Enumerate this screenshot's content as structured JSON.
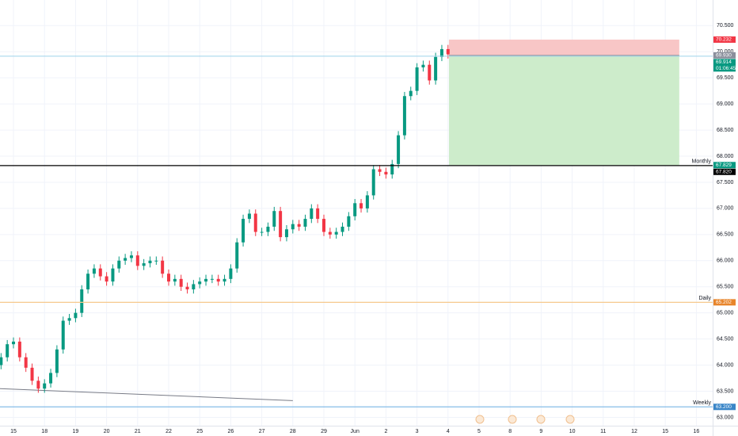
{
  "chart_data": {
    "type": "candlestick",
    "up_color": "#089981",
    "down_color": "#f23645",
    "grid": true,
    "xlim": [
      -0.434,
      22.526
    ],
    "ylim": [
      62.84,
      70.99
    ],
    "xticks": [
      {
        "value": 0,
        "label": "15"
      },
      {
        "value": 1,
        "label": "18"
      },
      {
        "value": 2,
        "label": "19"
      },
      {
        "value": 3,
        "label": "20"
      },
      {
        "value": 4,
        "label": "21"
      },
      {
        "value": 5,
        "label": "22"
      },
      {
        "value": 6,
        "label": "25"
      },
      {
        "value": 7,
        "label": "26"
      },
      {
        "value": 8,
        "label": "27"
      },
      {
        "value": 9,
        "label": "28"
      },
      {
        "value": 10,
        "label": "29"
      },
      {
        "value": 11,
        "label": "Jun"
      },
      {
        "value": 12,
        "label": "2"
      },
      {
        "value": 13,
        "label": "3"
      },
      {
        "value": 14,
        "label": "4"
      },
      {
        "value": 15,
        "label": "5"
      },
      {
        "value": 16,
        "label": "8"
      },
      {
        "value": 17,
        "label": "9"
      },
      {
        "value": 18,
        "label": "10"
      },
      {
        "value": 19,
        "label": "11"
      },
      {
        "value": 20,
        "label": "12"
      },
      {
        "value": 21,
        "label": "15"
      },
      {
        "value": 22,
        "label": "16"
      }
    ],
    "yticks": [
      {
        "value": 63.0,
        "label": "63.000"
      },
      {
        "value": 63.5,
        "label": "63.500"
      },
      {
        "value": 64.0,
        "label": "64.000"
      },
      {
        "value": 64.5,
        "label": "64.500"
      },
      {
        "value": 65.0,
        "label": "65.000"
      },
      {
        "value": 65.5,
        "label": "65.500"
      },
      {
        "value": 66.0,
        "label": "66.000"
      },
      {
        "value": 66.5,
        "label": "66.500"
      },
      {
        "value": 67.0,
        "label": "67.000"
      },
      {
        "value": 67.5,
        "label": "67.500"
      },
      {
        "value": 68.0,
        "label": "68.000"
      },
      {
        "value": 68.5,
        "label": "68.500"
      },
      {
        "value": 69.0,
        "label": "69.000"
      },
      {
        "value": 69.5,
        "label": "69.500"
      },
      {
        "value": 70.0,
        "label": "70.000"
      },
      {
        "value": 70.5,
        "label": "70.500"
      }
    ],
    "x": [
      -0.4,
      -0.2,
      0,
      0.2,
      0.4,
      0.6,
      0.8,
      1,
      1.2,
      1.4,
      1.6,
      1.8,
      2,
      2.2,
      2.4,
      2.6,
      2.8,
      3,
      3.2,
      3.4,
      3.6,
      3.8,
      4,
      4.2,
      4.4,
      4.6,
      4.8,
      5,
      5.2,
      5.4,
      5.6,
      5.8,
      6,
      6.2,
      6.4,
      6.6,
      6.8,
      7,
      7.2,
      7.4,
      7.6,
      7.8,
      8,
      8.2,
      8.4,
      8.6,
      8.8,
      9,
      9.2,
      9.4,
      9.6,
      9.8,
      10,
      10.2,
      10.4,
      10.6,
      10.8,
      11,
      11.2,
      11.4,
      11.6,
      11.8,
      12,
      12.2,
      12.4,
      12.6,
      12.8,
      13,
      13.2,
      13.4,
      13.6,
      13.8,
      14
    ],
    "open": [
      64.0,
      64.15,
      64.4,
      64.45,
      64.15,
      63.95,
      63.7,
      63.55,
      63.65,
      63.85,
      64.3,
      64.85,
      64.9,
      65.0,
      65.45,
      65.75,
      65.85,
      65.7,
      65.6,
      65.85,
      66.0,
      66.05,
      66.1,
      65.9,
      65.95,
      66.0,
      66.0,
      65.75,
      65.6,
      65.65,
      65.5,
      65.45,
      65.55,
      65.6,
      65.65,
      65.65,
      65.6,
      65.65,
      65.85,
      66.35,
      66.8,
      66.9,
      66.55,
      66.55,
      66.65,
      66.95,
      66.45,
      66.6,
      66.7,
      66.65,
      66.8,
      67.0,
      66.8,
      66.55,
      66.5,
      66.55,
      66.65,
      66.85,
      67.1,
      67.0,
      67.25,
      67.75,
      67.7,
      67.65,
      67.85,
      68.4,
      69.15,
      69.25,
      69.7,
      69.75,
      69.45,
      69.9,
      70.05
    ],
    "high": [
      64.23,
      64.48,
      64.53,
      64.53,
      64.23,
      64.03,
      63.78,
      63.73,
      63.93,
      64.38,
      64.93,
      64.98,
      65.08,
      65.53,
      65.83,
      65.93,
      65.93,
      65.78,
      65.93,
      66.08,
      66.13,
      66.18,
      66.18,
      66.03,
      66.08,
      66.08,
      66.08,
      65.83,
      65.73,
      65.73,
      65.58,
      65.63,
      65.68,
      65.73,
      65.73,
      65.73,
      65.73,
      65.93,
      66.43,
      66.88,
      66.98,
      66.98,
      66.63,
      66.73,
      67.03,
      67.03,
      66.68,
      66.78,
      66.78,
      66.88,
      67.08,
      67.08,
      66.88,
      66.63,
      66.63,
      66.73,
      66.93,
      67.18,
      67.18,
      67.33,
      67.83,
      67.83,
      67.78,
      67.93,
      68.48,
      69.23,
      69.33,
      69.78,
      69.83,
      69.83,
      69.98,
      70.13,
      70.13
    ],
    "low": [
      63.92,
      64.07,
      64.32,
      64.07,
      63.87,
      63.62,
      63.47,
      63.47,
      63.57,
      63.77,
      64.22,
      64.77,
      64.82,
      64.92,
      65.37,
      65.67,
      65.62,
      65.52,
      65.52,
      65.77,
      65.92,
      65.97,
      65.82,
      65.82,
      65.87,
      65.92,
      65.67,
      65.52,
      65.52,
      65.42,
      65.37,
      65.37,
      65.47,
      65.52,
      65.57,
      65.52,
      65.52,
      65.57,
      65.77,
      66.27,
      66.72,
      66.47,
      66.47,
      66.47,
      66.57,
      66.37,
      66.37,
      66.52,
      66.57,
      66.57,
      66.72,
      66.72,
      66.47,
      66.42,
      66.42,
      66.47,
      66.57,
      66.77,
      66.92,
      66.92,
      67.17,
      67.62,
      67.57,
      67.57,
      67.77,
      68.32,
      69.07,
      69.17,
      69.62,
      69.37,
      69.37,
      69.82,
      69.87
    ],
    "close": [
      64.15,
      64.4,
      64.45,
      64.15,
      63.95,
      63.7,
      63.55,
      63.65,
      63.85,
      64.3,
      64.85,
      64.9,
      65.0,
      65.45,
      65.75,
      65.85,
      65.7,
      65.6,
      65.85,
      66.0,
      66.05,
      66.1,
      65.9,
      65.95,
      66.0,
      66.0,
      65.75,
      65.6,
      65.65,
      65.5,
      65.45,
      65.55,
      65.6,
      65.65,
      65.65,
      65.6,
      65.65,
      65.85,
      66.35,
      66.8,
      66.9,
      66.55,
      66.55,
      66.65,
      66.95,
      66.45,
      66.6,
      66.7,
      66.65,
      66.8,
      67.0,
      66.8,
      66.55,
      66.5,
      66.55,
      66.65,
      66.85,
      67.1,
      67.0,
      67.25,
      67.75,
      67.7,
      67.65,
      67.85,
      68.4,
      69.15,
      69.25,
      69.7,
      69.75,
      69.45,
      69.9,
      70.05,
      69.95
    ],
    "levels": [
      {
        "name": "Monthly",
        "value": 67.82,
        "label": "67.820",
        "color": "#000000",
        "line_color": "#000000"
      },
      {
        "name": "Daily",
        "value": 65.202,
        "label": "65.202",
        "color": "#e8852b",
        "line_color": "#f6c98d"
      },
      {
        "name": "Weekly",
        "value": 63.2,
        "label": "63.200",
        "color": "#3a86c8",
        "line_color": "#86bde8"
      }
    ],
    "current_price": {
      "value": 69.914,
      "label": "69.914",
      "countdown": "01:06:45",
      "color": "#089981",
      "line_color": "#9ed3ea"
    },
    "position": {
      "x": [
        14.03,
        21.45
      ],
      "entry": 69.93,
      "entry_label": "69.930",
      "entry_color": "#8a8f9c",
      "stop": 70.232,
      "stop_label": "70.232",
      "stop_color": "#f23645",
      "stop_fill": "#f8c6c6",
      "target": 67.829,
      "target_label": "67.829",
      "target_color": "#089981",
      "target_fill": "#cdeccb"
    },
    "trendline": {
      "x": [
        -0.434,
        9.0
      ],
      "y": [
        63.55,
        63.32
      ],
      "color": "#787b86"
    }
  }
}
